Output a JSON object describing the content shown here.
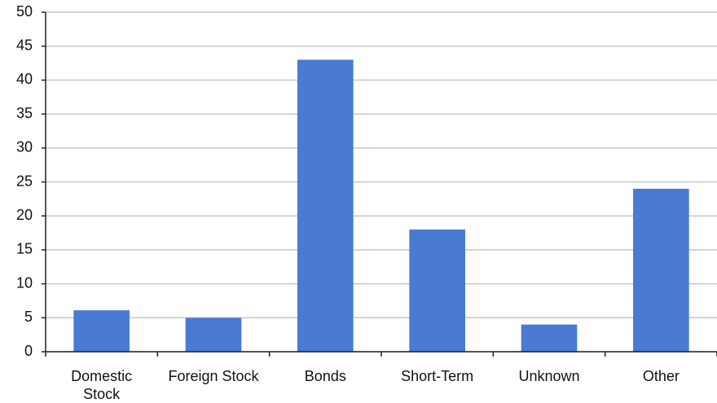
{
  "chart_data": {
    "type": "bar",
    "categories": [
      "Domestic Stock",
      "Foreign Stock",
      "Bonds",
      "Short-Term",
      "Unknown",
      "Other"
    ],
    "values": [
      6.1,
      5,
      43,
      18,
      4,
      24
    ],
    "color": "#4a7bd2",
    "ylim": [
      0,
      50
    ],
    "yticks": [
      0,
      5,
      10,
      15,
      20,
      25,
      30,
      35,
      40,
      45,
      50
    ],
    "grid": true
  }
}
